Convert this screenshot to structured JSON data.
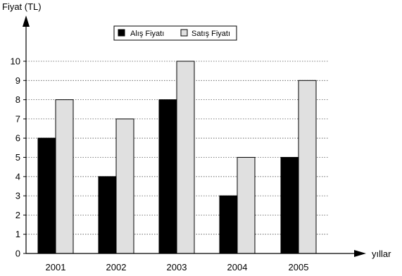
{
  "chart_data": {
    "type": "bar",
    "title": "",
    "xlabel": "yıllar",
    "ylabel": "Fiyat (TL)",
    "categories": [
      "2001",
      "2002",
      "2003",
      "2004",
      "2005"
    ],
    "series": [
      {
        "name": "Alış Fiyatı",
        "values": [
          6,
          4,
          8,
          3,
          5
        ],
        "color": "#000000"
      },
      {
        "name": "Satış Fiyatı",
        "values": [
          8,
          7,
          10,
          5,
          9
        ],
        "color": "#e0e0e0"
      }
    ],
    "ylim": [
      0,
      10
    ],
    "yticks": [
      0,
      1,
      2,
      3,
      4,
      5,
      6,
      7,
      8,
      9,
      10
    ],
    "grid": true,
    "grid_style": "dotted",
    "legend_position": "top-center"
  }
}
